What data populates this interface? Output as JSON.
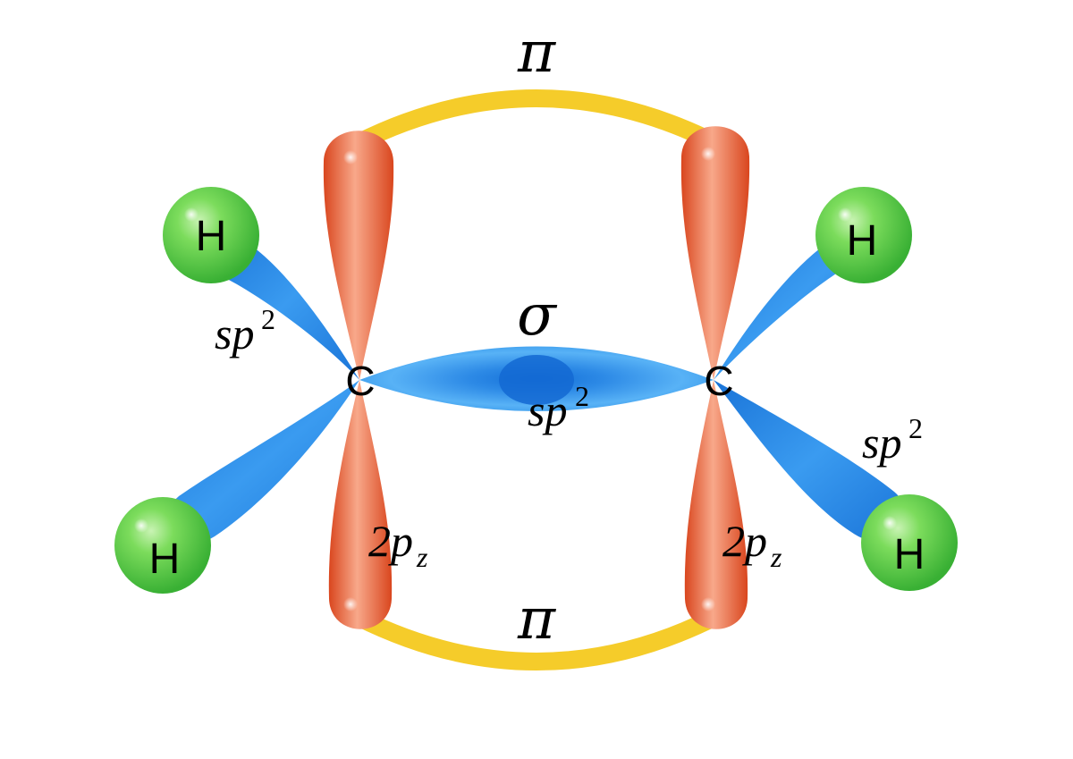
{
  "atoms": {
    "carbon_left": "C",
    "carbon_right": "C",
    "h_top_left": "H",
    "h_bottom_left": "H",
    "h_top_right": "H",
    "h_bottom_right": "H"
  },
  "bonds": {
    "pi_top": "π",
    "pi_bottom": "π",
    "sigma": "σ"
  },
  "orbital_labels": {
    "sp2_base": "sp",
    "sp2_exp": "2",
    "pz_base": "2p",
    "pz_sub": "z"
  },
  "colors": {
    "sp2_orbital": "#1f7fe0",
    "p_orbital": "#e0572a",
    "pi_bond": "#f5cc2a",
    "hydrogen": "#3db83d"
  }
}
